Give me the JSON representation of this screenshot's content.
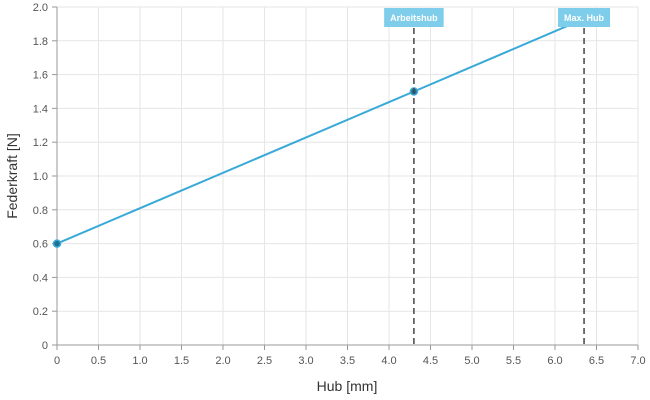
{
  "chart_data": {
    "type": "line",
    "title": "",
    "xlabel": "Hub [mm]",
    "ylabel": "Federkraft [N]",
    "xlim": [
      0,
      7.0
    ],
    "ylim": [
      0,
      2.0
    ],
    "x_ticks": [
      "0",
      "0.5",
      "1.0",
      "1.5",
      "2.0",
      "2.5",
      "3.0",
      "3.5",
      "4.0",
      "4.5",
      "5.0",
      "5.5",
      "6.0",
      "6.5",
      "7.0"
    ],
    "x_tick_values": [
      0,
      0.5,
      1.0,
      1.5,
      2.0,
      2.5,
      3.0,
      3.5,
      4.0,
      4.5,
      5.0,
      5.5,
      6.0,
      6.5,
      7.0
    ],
    "y_ticks": [
      "0",
      "0.2",
      "0.4",
      "0.6",
      "0.8",
      "1.0",
      "1.2",
      "1.4",
      "1.6",
      "1.8",
      "2.0"
    ],
    "y_tick_values": [
      0,
      0.2,
      0.4,
      0.6,
      0.8,
      1.0,
      1.2,
      1.4,
      1.6,
      1.8,
      2.0
    ],
    "grid": true,
    "legend": false,
    "series": [
      {
        "color": "#39a9d8",
        "points": [
          {
            "x": 0,
            "y": 0.6
          },
          {
            "x": 4.3,
            "y": 1.5
          },
          {
            "x": 6.35,
            "y": 1.93
          }
        ]
      }
    ],
    "markers": [
      {
        "label": "Arbeitshub",
        "x": 4.3,
        "color": "#7ecdea"
      },
      {
        "label": "Max. Hub",
        "x": 6.35,
        "color": "#7ecdea"
      }
    ]
  }
}
